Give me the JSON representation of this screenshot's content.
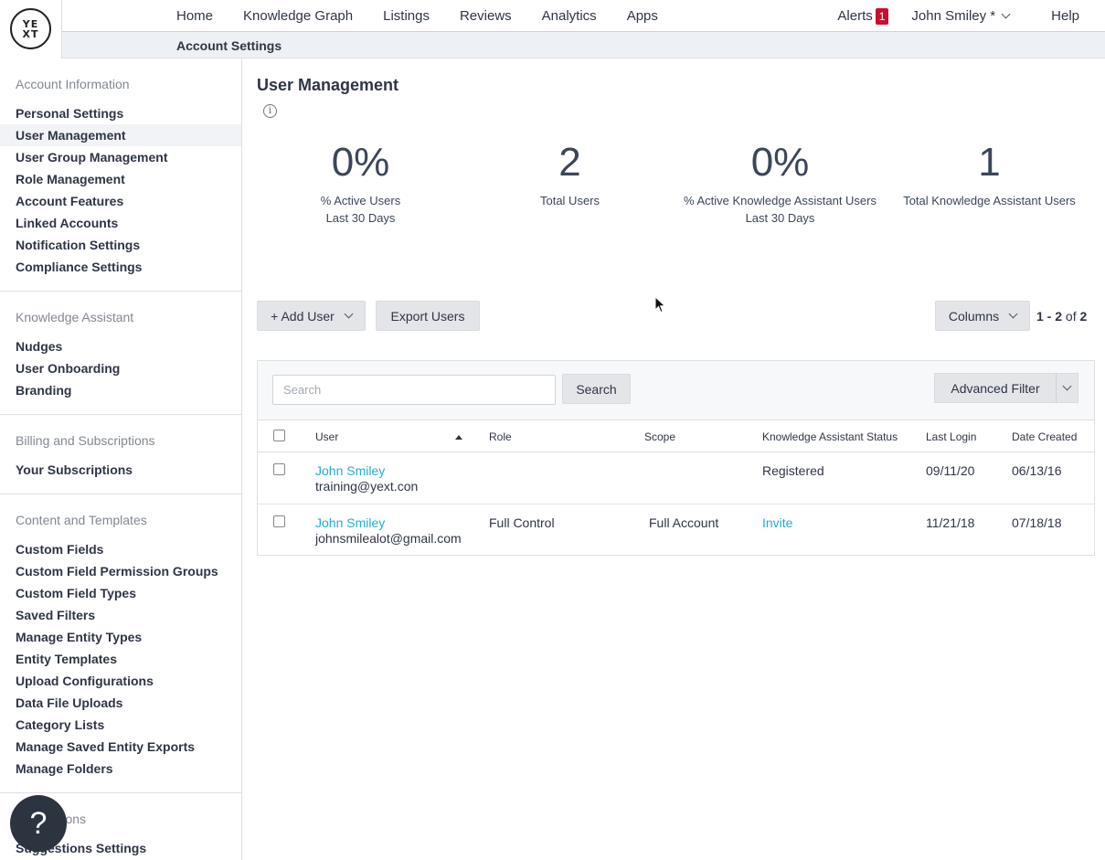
{
  "logo": {
    "line1": "YE",
    "line2": "XT"
  },
  "nav": {
    "items": [
      "Home",
      "Knowledge Graph",
      "Listings",
      "Reviews",
      "Analytics",
      "Apps"
    ],
    "alerts_label": "Alerts",
    "alerts_count": "1",
    "user_name": "John Smiley *",
    "help_label": "Help"
  },
  "subbar": {
    "title": "Account Settings"
  },
  "sidebar": {
    "sections": [
      {
        "heading": "Account Information",
        "items": [
          "Personal Settings",
          "User Management",
          "User Group Management",
          "Role Management",
          "Account Features",
          "Linked Accounts",
          "Notification Settings",
          "Compliance Settings"
        ]
      },
      {
        "heading": "Knowledge Assistant",
        "items": [
          "Nudges",
          "User Onboarding",
          "Branding"
        ]
      },
      {
        "heading": "Billing and Subscriptions",
        "items": [
          "Your Subscriptions"
        ]
      },
      {
        "heading": "Content and Templates",
        "items": [
          "Custom Fields",
          "Custom Field Permission Groups",
          "Custom Field Types",
          "Saved Filters",
          "Manage Entity Types",
          "Entity Templates",
          "Upload Configurations",
          "Data File Uploads",
          "Category Lists",
          "Manage Saved Entity Exports",
          "Manage Folders"
        ]
      },
      {
        "heading": "Suggestions",
        "items": [
          "Suggestions Settings"
        ]
      }
    ],
    "active_item": "User Management"
  },
  "help_button": {
    "label": "?"
  },
  "main": {
    "title": "User Management",
    "info_icon": "i",
    "stats": [
      {
        "value": "0%",
        "label1": "% Active Users",
        "label2": "Last 30 Days"
      },
      {
        "value": "2",
        "label1": "Total Users",
        "label2": ""
      },
      {
        "value": "0%",
        "label1": "% Active Knowledge Assistant Users",
        "label2": "Last 30 Days"
      },
      {
        "value": "1",
        "label1": "Total Knowledge Assistant Users",
        "label2": ""
      }
    ],
    "add_user_label": "+ Add User",
    "export_users_label": "Export Users",
    "columns_label": "Columns",
    "pagination": {
      "range": "1 - 2",
      "of": "of",
      "total": "2"
    },
    "search_placeholder": "Search",
    "search_button": "Search",
    "advanced_filter": "Advanced Filter",
    "table": {
      "headers": [
        "User",
        "Role",
        "Scope",
        "Knowledge Assistant Status",
        "Last Login",
        "Date Created"
      ],
      "rows": [
        {
          "name": "John Smiley",
          "email": "training@yext.con",
          "role": "",
          "scope": "",
          "ka_status": "Registered",
          "last_login": "09/11/20",
          "date_created": "06/13/16"
        },
        {
          "name": "John Smiley",
          "email": "johnsmilealot@gmail.com",
          "role": "Full Control",
          "scope": "Full Account",
          "ka_status": "Invite",
          "last_login": "11/21/18",
          "date_created": "07/18/18"
        }
      ]
    }
  },
  "colors": {
    "link": "#1eaed9",
    "alert": "#c8102e",
    "help_button": "#2c3440"
  }
}
